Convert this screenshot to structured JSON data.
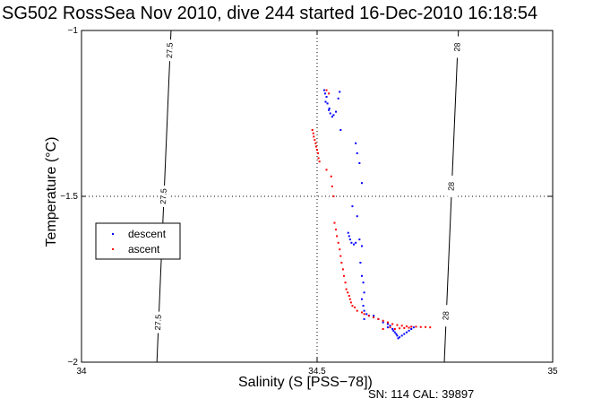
{
  "chart_data": {
    "type": "scatter",
    "title": "SG502 RossSea Nov 2010, dive 244 started 16-Dec-2010 16:18:54",
    "xlabel": "Salinity (S [PSS−78])",
    "ylabel": "Temperature (°C)",
    "footer": "SN: 114  CAL: 39897",
    "xlim": [
      34,
      35
    ],
    "ylim": [
      -2,
      -1
    ],
    "xticks": [
      "34",
      "34.5",
      "35"
    ],
    "yticks": [
      "-1",
      "-1.5",
      "-2"
    ],
    "grid": "dotted at x=34.5 and y=-1.5",
    "legend_position": "left",
    "series": [
      {
        "name": "descent",
        "color": "#0000ff",
        "points": [
          [
            34.515,
            -1.18
          ],
          [
            34.517,
            -1.19
          ],
          [
            34.52,
            -1.2
          ],
          [
            34.522,
            -1.22
          ],
          [
            34.525,
            -1.24
          ],
          [
            34.528,
            -1.25
          ],
          [
            34.532,
            -1.26
          ],
          [
            34.535,
            -1.255
          ],
          [
            34.54,
            -1.245
          ],
          [
            34.545,
            -1.205
          ],
          [
            34.548,
            -1.185
          ],
          [
            34.526,
            -1.235
          ],
          [
            34.518,
            -1.215
          ],
          [
            34.55,
            -1.3
          ],
          [
            34.582,
            -1.34
          ],
          [
            34.585,
            -1.37
          ],
          [
            34.59,
            -1.4
          ],
          [
            34.595,
            -1.46
          ],
          [
            34.575,
            -1.53
          ],
          [
            34.585,
            -1.56
          ],
          [
            34.566,
            -1.61
          ],
          [
            34.568,
            -1.62
          ],
          [
            34.57,
            -1.63
          ],
          [
            34.573,
            -1.64
          ],
          [
            34.578,
            -1.645
          ],
          [
            34.582,
            -1.64
          ],
          [
            34.59,
            -1.63
          ],
          [
            34.595,
            -1.65
          ],
          [
            34.592,
            -1.7
          ],
          [
            34.595,
            -1.74
          ],
          [
            34.598,
            -1.76
          ],
          [
            34.6,
            -1.79
          ],
          [
            34.595,
            -1.81
          ],
          [
            34.598,
            -1.83
          ],
          [
            34.6,
            -1.845
          ],
          [
            34.605,
            -1.855
          ],
          [
            34.6,
            -1.87
          ],
          [
            34.595,
            -1.85
          ],
          [
            34.61,
            -1.86
          ],
          [
            34.62,
            -1.86
          ],
          [
            34.63,
            -1.87
          ],
          [
            34.64,
            -1.88
          ],
          [
            34.65,
            -1.885
          ],
          [
            34.655,
            -1.89
          ],
          [
            34.66,
            -1.9
          ],
          [
            34.665,
            -1.91
          ],
          [
            34.67,
            -1.92
          ],
          [
            34.675,
            -1.925
          ],
          [
            34.68,
            -1.92
          ],
          [
            34.685,
            -1.915
          ],
          [
            34.69,
            -1.91
          ],
          [
            34.695,
            -1.905
          ],
          [
            34.7,
            -1.9
          ],
          [
            34.705,
            -1.895
          ],
          [
            34.672,
            -1.928
          ],
          [
            34.668,
            -1.915
          ],
          [
            34.662,
            -1.905
          ],
          [
            34.65,
            -1.895
          ]
        ]
      },
      {
        "name": "ascent",
        "color": "#ff0000",
        "points": [
          [
            34.52,
            -1.18
          ],
          [
            34.525,
            -1.19
          ],
          [
            34.49,
            -1.3
          ],
          [
            34.492,
            -1.31
          ],
          [
            34.493,
            -1.32
          ],
          [
            34.495,
            -1.33
          ],
          [
            34.497,
            -1.34
          ],
          [
            34.498,
            -1.35
          ],
          [
            34.5,
            -1.36
          ],
          [
            34.502,
            -1.37
          ],
          [
            34.503,
            -1.385
          ],
          [
            34.505,
            -1.395
          ],
          [
            34.52,
            -1.42
          ],
          [
            34.53,
            -1.44
          ],
          [
            34.532,
            -1.47
          ],
          [
            34.535,
            -1.5
          ],
          [
            34.537,
            -1.58
          ],
          [
            34.54,
            -1.6
          ],
          [
            34.542,
            -1.62
          ],
          [
            34.545,
            -1.64
          ],
          [
            34.548,
            -1.66
          ],
          [
            34.55,
            -1.68
          ],
          [
            34.552,
            -1.7
          ],
          [
            34.555,
            -1.72
          ],
          [
            34.557,
            -1.74
          ],
          [
            34.56,
            -1.76
          ],
          [
            34.562,
            -1.78
          ],
          [
            34.565,
            -1.79
          ],
          [
            34.568,
            -1.8
          ],
          [
            34.57,
            -1.81
          ],
          [
            34.572,
            -1.82
          ],
          [
            34.575,
            -1.83
          ],
          [
            34.58,
            -1.835
          ],
          [
            34.585,
            -1.845
          ],
          [
            34.595,
            -1.85
          ],
          [
            34.6,
            -1.855
          ],
          [
            34.61,
            -1.86
          ],
          [
            34.62,
            -1.865
          ],
          [
            34.63,
            -1.87
          ],
          [
            34.64,
            -1.875
          ],
          [
            34.65,
            -1.88
          ],
          [
            34.66,
            -1.885
          ],
          [
            34.67,
            -1.888
          ],
          [
            34.68,
            -1.89
          ],
          [
            34.69,
            -1.892
          ],
          [
            34.7,
            -1.893
          ],
          [
            34.71,
            -1.893
          ],
          [
            34.72,
            -1.894
          ],
          [
            34.73,
            -1.894
          ],
          [
            34.74,
            -1.895
          ],
          [
            34.64,
            -1.9
          ],
          [
            34.655,
            -1.895
          ],
          [
            34.665,
            -1.9
          ],
          [
            34.675,
            -1.898
          ],
          [
            34.685,
            -1.897
          ],
          [
            34.695,
            -1.896
          ]
        ]
      }
    ],
    "contours": [
      {
        "label": "27.5",
        "points": [
          [
            34.19,
            -1
          ],
          [
            34.16,
            -2
          ]
        ],
        "label_y": [
          -1.06,
          -1.5,
          -1.88
        ]
      },
      {
        "label": "28",
        "points": [
          [
            34.8,
            -1
          ],
          [
            34.77,
            -2
          ]
        ],
        "label_y": [
          -1.05,
          -1.47,
          -1.86
        ]
      }
    ]
  }
}
